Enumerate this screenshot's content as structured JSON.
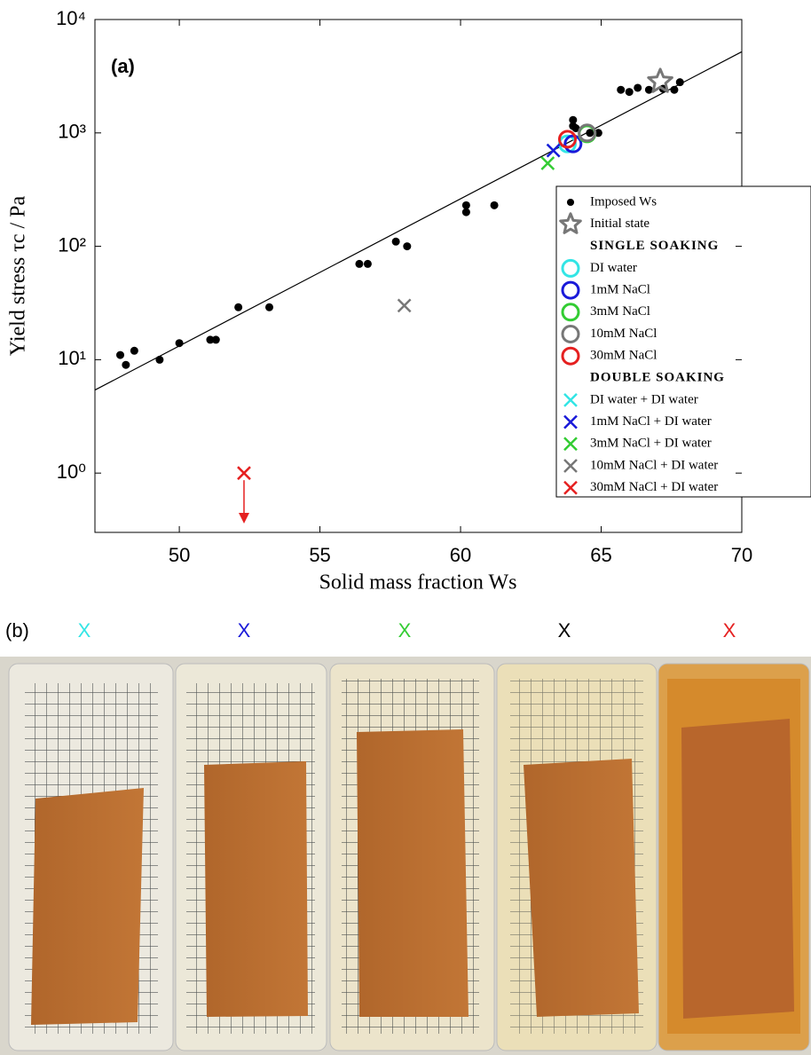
{
  "chart_data": {
    "type": "scatter",
    "panel_label": "(a)",
    "x_label": "Solid mass fraction Ws",
    "y_label": "Yield stress τc  /  Pa",
    "xlim": [
      47,
      70
    ],
    "xticks": [
      50,
      55,
      60,
      65,
      70
    ],
    "ylim": [
      0.3,
      10000
    ],
    "ylog": true,
    "yticks": [
      {
        "value": 1,
        "label": "10⁰"
      },
      {
        "value": 10,
        "label": "10¹"
      },
      {
        "value": 100,
        "label": "10²"
      },
      {
        "value": 1000,
        "label": "10³"
      },
      {
        "value": 10000,
        "label": "10⁴"
      }
    ],
    "grid": false,
    "fit_line": {
      "color": "#000000",
      "x": [
        47,
        70
      ],
      "values": [
        5.4,
        5200
      ]
    },
    "legend_groups": [
      "SINGLE SOAKING",
      "DOUBLE SOAKING"
    ],
    "series": [
      {
        "name": "Imposed Ws",
        "color": "#000000",
        "marker": "dot",
        "x": [
          47.9,
          48.1,
          48.4,
          49.3,
          50.0,
          51.1,
          51.3,
          52.1,
          53.2,
          56.4,
          56.7,
          57.7,
          58.1,
          60.2,
          60.2,
          61.2,
          64.0,
          64.1,
          64.0,
          64.6,
          64.9,
          65.7,
          66.0,
          66.3,
          66.7,
          67.2,
          67.6,
          67.8
        ],
        "values": [
          11,
          9,
          12,
          10,
          14,
          15,
          15,
          29,
          29,
          70,
          70,
          110,
          100,
          230,
          200,
          230,
          1300,
          1100,
          1150,
          1000,
          1000,
          2400,
          2300,
          2500,
          2400,
          2450,
          2400,
          2800
        ]
      },
      {
        "name": "Initial state",
        "color": "#777777",
        "marker": "star",
        "x": [
          67.1
        ],
        "values": [
          2840
        ]
      },
      {
        "name": "DI water",
        "color": "#33e5e5",
        "marker": "circle",
        "group": 0,
        "x": [
          63.8
        ],
        "values": [
          800
        ]
      },
      {
        "name": "1mM NaCl",
        "color": "#1a1ad9",
        "marker": "circle",
        "group": 0,
        "x": [
          64.0
        ],
        "values": [
          800
        ]
      },
      {
        "name": "3mM NaCl",
        "color": "#33cc33",
        "marker": "circle",
        "group": 0,
        "x": [
          64.5
        ],
        "values": [
          980
        ]
      },
      {
        "name": "10mM NaCl",
        "color": "#777777",
        "marker": "circle",
        "group": 0,
        "x": [
          64.5
        ],
        "values": [
          1000
        ]
      },
      {
        "name": "30mM NaCl",
        "color": "#e52020",
        "marker": "circle",
        "group": 0,
        "x": [
          63.8
        ],
        "values": [
          880
        ]
      },
      {
        "name": "DI water + DI water",
        "color": "#33e5e5",
        "marker": "cross",
        "group": 1,
        "x": [
          63.3
        ],
        "values": [
          700
        ]
      },
      {
        "name": "1mM NaCl + DI water",
        "color": "#1a1ad9",
        "marker": "cross",
        "group": 1,
        "x": [
          63.3
        ],
        "values": [
          700
        ]
      },
      {
        "name": "3mM NaCl + DI water",
        "color": "#33cc33",
        "marker": "cross",
        "group": 1,
        "x": [
          63.1
        ],
        "values": [
          540
        ]
      },
      {
        "name": "10mM NaCl + DI water",
        "color": "#777777",
        "marker": "cross",
        "group": 1,
        "x": [
          58.0
        ],
        "values": [
          30
        ]
      },
      {
        "name": "30mM NaCl + DI water",
        "color": "#e52020",
        "marker": "cross",
        "group": 1,
        "x": [
          52.3
        ],
        "values": [
          1.0
        ],
        "arrow_down": true
      }
    ]
  },
  "panel_b": {
    "label": "(b)",
    "markers": [
      {
        "text": "X",
        "color": "#33e5e5"
      },
      {
        "text": "X",
        "color": "#1a1ad9"
      },
      {
        "text": "X",
        "color": "#33cc33"
      },
      {
        "text": "X",
        "color": "#000000"
      },
      {
        "text": "X",
        "color": "#e52020"
      }
    ]
  }
}
